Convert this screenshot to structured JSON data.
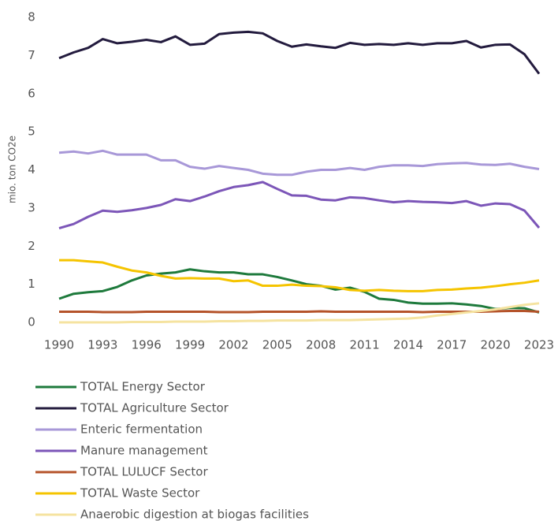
{
  "chart_data": {
    "type": "line",
    "y_label": "mio. ton CO2e",
    "x": [
      1990,
      1991,
      1992,
      1993,
      1994,
      1995,
      1996,
      1997,
      1998,
      1999,
      2000,
      2001,
      2002,
      2003,
      2004,
      2005,
      2006,
      2007,
      2008,
      2009,
      2010,
      2011,
      2012,
      2013,
      2014,
      2015,
      2016,
      2017,
      2018,
      2019,
      2020,
      2021,
      2022,
      2023
    ],
    "xlim": [
      1990,
      2023
    ],
    "xticks": [
      1990,
      1993,
      1996,
      1999,
      2002,
      2005,
      2008,
      2011,
      2014,
      2017,
      2020,
      2023
    ],
    "ylim": [
      0,
      8
    ],
    "yticks": [
      0,
      1,
      2,
      3,
      4,
      5,
      6,
      7,
      8
    ],
    "grid": false,
    "legend": "bottom",
    "series": [
      {
        "name": "TOTAL Energy Sector",
        "color": "#1e7a3c",
        "values": [
          0.62,
          0.75,
          0.79,
          0.82,
          0.93,
          1.1,
          1.23,
          1.28,
          1.31,
          1.39,
          1.34,
          1.31,
          1.31,
          1.26,
          1.26,
          1.19,
          1.1,
          1.0,
          0.96,
          0.86,
          0.91,
          0.8,
          0.62,
          0.59,
          0.52,
          0.49,
          0.49,
          0.5,
          0.47,
          0.43,
          0.35,
          0.38,
          0.37,
          0.26
        ]
      },
      {
        "name": "TOTAL Agriculture Sector",
        "color": "#231b3e",
        "values": [
          6.93,
          7.08,
          7.2,
          7.43,
          7.32,
          7.36,
          7.41,
          7.35,
          7.5,
          7.28,
          7.31,
          7.56,
          7.6,
          7.62,
          7.58,
          7.38,
          7.23,
          7.29,
          7.24,
          7.2,
          7.33,
          7.28,
          7.3,
          7.28,
          7.32,
          7.28,
          7.32,
          7.32,
          7.38,
          7.21,
          7.28,
          7.29,
          7.03,
          6.52
        ]
      },
      {
        "name": "Enteric fermentation",
        "color": "#a898d8",
        "values": [
          4.45,
          4.48,
          4.43,
          4.5,
          4.4,
          4.4,
          4.4,
          4.25,
          4.25,
          4.08,
          4.03,
          4.1,
          4.05,
          4.0,
          3.9,
          3.87,
          3.87,
          3.95,
          4.0,
          4.0,
          4.05,
          4.0,
          4.08,
          4.12,
          4.12,
          4.1,
          4.15,
          4.17,
          4.18,
          4.14,
          4.13,
          4.16,
          4.08,
          4.02
        ]
      },
      {
        "name": "Manure management",
        "color": "#7c56b8",
        "values": [
          2.47,
          2.58,
          2.77,
          2.93,
          2.9,
          2.94,
          3.0,
          3.08,
          3.23,
          3.18,
          3.3,
          3.44,
          3.55,
          3.6,
          3.68,
          3.5,
          3.33,
          3.32,
          3.22,
          3.2,
          3.28,
          3.26,
          3.2,
          3.15,
          3.18,
          3.16,
          3.15,
          3.13,
          3.18,
          3.06,
          3.12,
          3.1,
          2.93,
          2.48
        ]
      },
      {
        "name": "TOTAL LULUCF Sector",
        "color": "#b5532a",
        "values": [
          0.28,
          0.28,
          0.28,
          0.27,
          0.27,
          0.27,
          0.28,
          0.28,
          0.28,
          0.28,
          0.28,
          0.27,
          0.27,
          0.27,
          0.28,
          0.28,
          0.28,
          0.28,
          0.29,
          0.28,
          0.28,
          0.28,
          0.28,
          0.28,
          0.28,
          0.27,
          0.28,
          0.28,
          0.28,
          0.28,
          0.29,
          0.3,
          0.3,
          0.28
        ]
      },
      {
        "name": "TOTAL Waste Sector",
        "color": "#f5c400",
        "values": [
          1.63,
          1.63,
          1.6,
          1.57,
          1.46,
          1.36,
          1.31,
          1.22,
          1.15,
          1.16,
          1.15,
          1.15,
          1.08,
          1.1,
          0.96,
          0.96,
          0.99,
          0.96,
          0.95,
          0.92,
          0.85,
          0.83,
          0.85,
          0.83,
          0.82,
          0.82,
          0.85,
          0.86,
          0.89,
          0.91,
          0.95,
          1.0,
          1.04,
          1.1
        ]
      },
      {
        "name": "Anaerobic digestion at biogas facilities",
        "color": "#f5e3a0",
        "values": [
          0,
          0,
          0,
          0,
          0,
          0.01,
          0.01,
          0.01,
          0.02,
          0.02,
          0.02,
          0.03,
          0.03,
          0.04,
          0.04,
          0.05,
          0.05,
          0.05,
          0.06,
          0.06,
          0.06,
          0.07,
          0.08,
          0.09,
          0.1,
          0.13,
          0.18,
          0.22,
          0.26,
          0.3,
          0.34,
          0.4,
          0.46,
          0.5
        ]
      }
    ]
  }
}
